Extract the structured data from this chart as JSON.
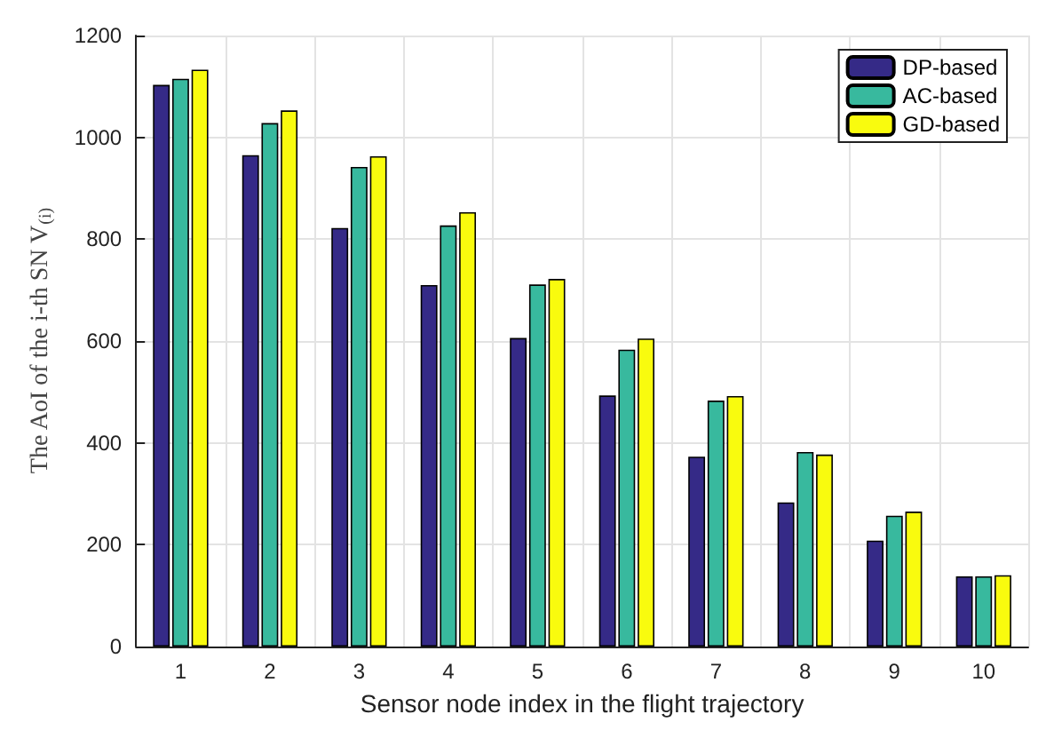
{
  "chart_data": {
    "type": "bar",
    "xlabel": "Sensor node index in the flight trajectory",
    "ylabel": "The AoI of the i-th SN V$_{(i)}$",
    "categories": [
      "1",
      "2",
      "3",
      "4",
      "5",
      "6",
      "7",
      "8",
      "9",
      "10"
    ],
    "series": [
      {
        "name": "DP-based",
        "color": "#352a87",
        "values": [
          1103,
          965,
          822,
          710,
          606,
          493,
          373,
          283,
          208,
          138
        ]
      },
      {
        "name": "AC-based",
        "color": "#38b99e",
        "values": [
          1115,
          1028,
          942,
          827,
          711,
          583,
          483,
          382,
          257,
          138
        ]
      },
      {
        "name": "GD-based",
        "color": "#f9fb0e",
        "values": [
          1133,
          1053,
          963,
          853,
          722,
          605,
          492,
          377,
          265,
          140
        ]
      }
    ],
    "ylim": [
      0,
      1200
    ],
    "yticks": [
      0,
      200,
      400,
      600,
      800,
      1000,
      1200
    ],
    "grid": true,
    "legend": "top right"
  }
}
